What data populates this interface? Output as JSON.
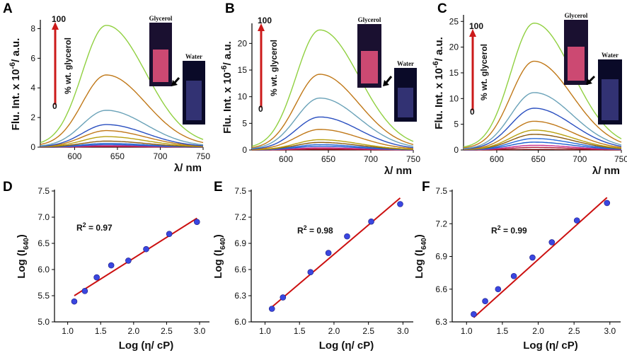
{
  "colors": {
    "fit_line": "#cc1010",
    "point_fill": "#3a46e0",
    "arrow": "#cc1a1a",
    "spectra": [
      "#7a1010",
      "#b01a3a",
      "#c83090",
      "#1c5fd0",
      "#2a6ad8",
      "#8a5a10",
      "#b8a010",
      "#c07818",
      "#2a4fc0",
      "#6aa2b8",
      "#c07818",
      "#90d040",
      "#d03080"
    ]
  },
  "chart_data": [
    {
      "panel": "A",
      "type": "line",
      "title": "",
      "xlabel": "λ/ nm",
      "ylabel": "Flu. Int. x 10",
      "ylabel_exp": "-6",
      "ylabel_tail": "/ a.u.",
      "xlim": [
        560,
        750
      ],
      "ylim": [
        0,
        8.5
      ],
      "xticks": [
        "600",
        "650",
        "700",
        "750"
      ],
      "yticks": [
        "0",
        "2",
        "4",
        "6",
        "8"
      ],
      "peak_x": 637,
      "series_peaks": [
        0.02,
        0.05,
        0.1,
        0.17,
        0.25,
        0.4,
        0.7,
        1.1,
        1.5,
        2.45,
        4.8,
        8.1
      ],
      "annotation": {
        "top": "100",
        "bottom": "0",
        "label": "% wt. glycerol"
      },
      "inset_labels": {
        "glycerol": "Glycerol",
        "water": "Water"
      }
    },
    {
      "panel": "B",
      "type": "line",
      "title": "",
      "xlabel": "λ/ nm",
      "ylabel": "Flu. Int. x 10",
      "ylabel_exp": "-6",
      "ylabel_tail": "/ a.u.",
      "xlim": [
        560,
        750
      ],
      "ylim": [
        0,
        23.5
      ],
      "xticks": [
        "600",
        "650",
        "700",
        "750"
      ],
      "yticks": [
        "0",
        "5",
        "10",
        "15",
        "20"
      ],
      "peak_x": 640,
      "series_peaks": [
        0.05,
        0.2,
        0.4,
        0.7,
        1.0,
        1.4,
        1.9,
        3.8,
        6.1,
        9.6,
        14.0,
        22.2
      ],
      "annotation": {
        "top": "100",
        "bottom": "0",
        "label": "% wt. glycerol"
      },
      "inset_labels": {
        "glycerol": "Glycerol",
        "water": "Water"
      }
    },
    {
      "panel": "C",
      "type": "line",
      "title": "",
      "xlabel": "λ/ nm",
      "ylabel": "Flu. Int. x 10",
      "ylabel_exp": "-6",
      "ylabel_tail": "/ a.u.",
      "xlim": [
        560,
        750
      ],
      "ylim": [
        0,
        26
      ],
      "xticks": [
        "600",
        "650",
        "700",
        "750"
      ],
      "yticks": [
        "0",
        "5",
        "10",
        "15",
        "20",
        "25"
      ],
      "peak_x": 645,
      "series_peaks": [
        0.1,
        0.5,
        0.9,
        1.5,
        2.2,
        3.0,
        3.8,
        5.5,
        8.0,
        11.0,
        17.0,
        24.3
      ],
      "annotation": {
        "top": "100",
        "bottom": "0",
        "label": "% wt. glycerol"
      },
      "inset_labels": {
        "glycerol": "Glycerol",
        "water": "Water"
      }
    },
    {
      "panel": "D",
      "type": "scatter",
      "title": "",
      "xlabel": "Log (η/ cP)",
      "ylabel": "Log (I",
      "ylabel_sub": "640",
      "ylabel_tail": ")",
      "xlim": [
        0.8,
        3.15
      ],
      "ylim": [
        5.0,
        7.5
      ],
      "xticks": [
        "1.0",
        "1.5",
        "2.0",
        "2.5",
        "3.0"
      ],
      "yticks": [
        "5.0",
        "5.5",
        "6.0",
        "6.5",
        "7.0",
        "7.5"
      ],
      "x": [
        1.1,
        1.26,
        1.44,
        1.66,
        1.92,
        2.19,
        2.54,
        2.96
      ],
      "y": [
        5.39,
        5.59,
        5.85,
        6.08,
        6.17,
        6.39,
        6.68,
        6.91
      ],
      "fit": {
        "x": [
          1.1,
          2.96
        ],
        "y": [
          5.5,
          6.98
        ]
      },
      "r2_label": "R",
      "r2_sup": "2",
      "r2_value": " = 0.97"
    },
    {
      "panel": "E",
      "type": "scatter",
      "title": "",
      "xlabel": "Log (η/ cP)",
      "ylabel": "Log (I",
      "ylabel_sub": "640",
      "ylabel_tail": ")",
      "xlim": [
        0.8,
        3.15
      ],
      "ylim": [
        6.0,
        7.5
      ],
      "xticks": [
        "1.0",
        "1.5",
        "2.0",
        "2.5",
        "3.0"
      ],
      "yticks": [
        "6.0",
        "6.3",
        "6.6",
        "6.9",
        "7.2",
        "7.5"
      ],
      "x": [
        1.1,
        1.26,
        1.66,
        1.92,
        2.19,
        2.54,
        2.96
      ],
      "y": [
        6.15,
        6.28,
        6.57,
        6.79,
        6.98,
        7.15,
        7.35
      ],
      "fit": {
        "x": [
          1.1,
          2.96
        ],
        "y": [
          6.17,
          7.42
        ]
      },
      "r2_label": "R",
      "r2_sup": "2",
      "r2_value": " = 0.98"
    },
    {
      "panel": "F",
      "type": "scatter",
      "title": "",
      "xlabel": "Log (η/ cP)",
      "ylabel": "Log (I",
      "ylabel_sub": "640",
      "ylabel_tail": ")",
      "xlim": [
        0.8,
        3.15
      ],
      "ylim": [
        6.3,
        7.5
      ],
      "xticks": [
        "1.0",
        "1.5",
        "2.0",
        "2.5",
        "3.0"
      ],
      "yticks": [
        "6.3",
        "6.6",
        "6.9",
        "7.2",
        "7.5"
      ],
      "x": [
        1.1,
        1.26,
        1.44,
        1.66,
        1.92,
        2.19,
        2.54,
        2.96
      ],
      "y": [
        6.37,
        6.49,
        6.6,
        6.72,
        6.89,
        7.03,
        7.23,
        7.39
      ],
      "fit": {
        "x": [
          1.1,
          2.96
        ],
        "y": [
          6.34,
          7.44
        ]
      },
      "r2_label": "R",
      "r2_sup": "2",
      "r2_value": " = 0.99"
    }
  ]
}
